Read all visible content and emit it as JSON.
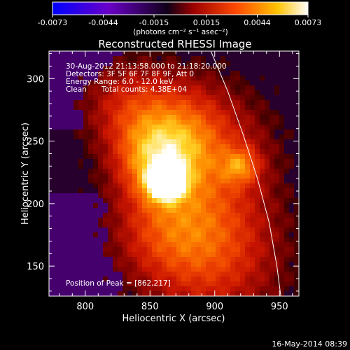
{
  "chart_data": {
    "type": "heatmap",
    "title": "Reconstructed RHESSI Image",
    "xlabel": "Heliocentric X (arcsec)",
    "ylabel": "Heliocentric Y (arcsec)",
    "xlim": [
      772,
      965
    ],
    "ylim": [
      126,
      322
    ],
    "x_ticks": [
      800,
      850,
      900,
      950
    ],
    "y_ticks": [
      150,
      200,
      250,
      300
    ],
    "colorbar": {
      "min": -0.0073,
      "max": 0.0073,
      "ticks": [
        "-0.0073",
        "-0.0044",
        "-0.0015",
        "0.0015",
        "0.0044",
        "0.0073"
      ],
      "tick_values": [
        -0.0073,
        -0.0044,
        -0.0015,
        0.0015,
        0.0044,
        0.0073
      ],
      "unit_label": "(photons cm⁻² s⁻¹ asec⁻²)",
      "colormap": [
        "#0000ff",
        "#6a00c8",
        "#000000",
        "#9b0000",
        "#ff4a00",
        "#ffc300",
        "#ffffff"
      ]
    },
    "annotations": {
      "time_range": "30-Aug-2012 21:13:58.000 to 21:18:20.000",
      "detectors": "Detectors: 3F 5F 6F 7F 8F 9F, Att 0",
      "energy": "Energy Range: 6.0 - 12.0 keV",
      "method": "Clean",
      "counts": "Total counts: 4.38E+04",
      "peak": "Position of Peak = [862,217]"
    },
    "peak": {
      "x": 862,
      "y": 217
    },
    "limb_curve": [
      [
        897,
        322
      ],
      [
        910,
        290
      ],
      [
        922,
        255
      ],
      [
        933,
        220
      ],
      [
        942,
        185
      ],
      [
        948,
        150
      ],
      [
        951,
        126
      ]
    ],
    "footer_date": "16-May-2014 08:39"
  }
}
